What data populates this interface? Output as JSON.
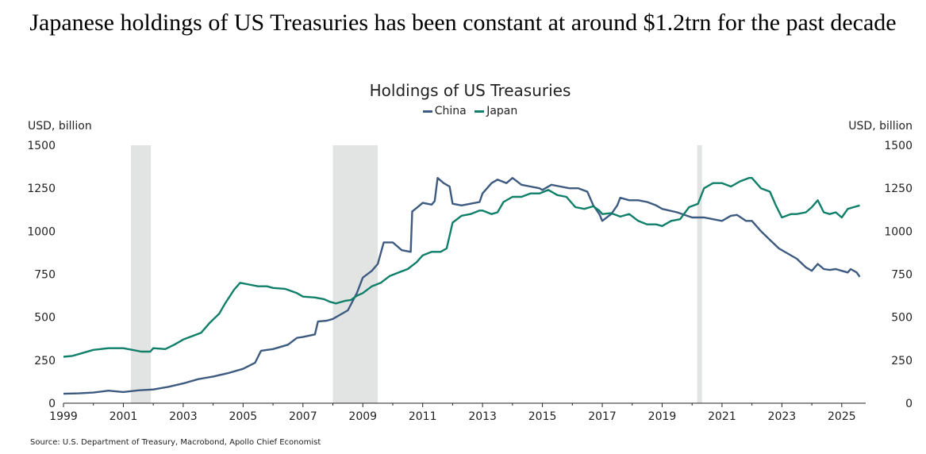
{
  "headline": "Japanese holdings of US Treasuries has been constant at around $1.2trn for the past decade",
  "source": "Source: U.S. Department of Treasury, Macrobond, Apollo Chief Economist",
  "chart_data": {
    "type": "line",
    "title": "Holdings of US Treasuries",
    "ylabel_left": "USD, billion",
    "ylabel_right": "USD, billion",
    "xlim": [
      1999,
      2025.8
    ],
    "ylim": [
      0,
      1500
    ],
    "y_ticks": [
      0,
      250,
      500,
      750,
      1000,
      1250,
      1500
    ],
    "x_ticks": [
      1999,
      2001,
      2003,
      2005,
      2007,
      2009,
      2011,
      2013,
      2015,
      2017,
      2019,
      2021,
      2023,
      2025
    ],
    "recessions": [
      [
        2001.25,
        2001.92
      ],
      [
        2008.0,
        2009.5
      ],
      [
        2020.17,
        2020.33
      ]
    ],
    "colors": {
      "China": "#3d5a80",
      "Japan": "#0f7f6a",
      "recession": "#e2e4e3",
      "axis": "#222222"
    },
    "series": [
      {
        "name": "China",
        "points": [
          [
            1999.0,
            55
          ],
          [
            1999.5,
            57
          ],
          [
            2000.0,
            62
          ],
          [
            2000.5,
            73
          ],
          [
            2001.0,
            65
          ],
          [
            2001.5,
            75
          ],
          [
            2002.0,
            80
          ],
          [
            2002.5,
            95
          ],
          [
            2003.0,
            115
          ],
          [
            2003.5,
            140
          ],
          [
            2004.0,
            155
          ],
          [
            2004.5,
            175
          ],
          [
            2005.0,
            200
          ],
          [
            2005.4,
            235
          ],
          [
            2005.6,
            305
          ],
          [
            2006.0,
            315
          ],
          [
            2006.5,
            340
          ],
          [
            2006.8,
            380
          ],
          [
            2007.0,
            385
          ],
          [
            2007.4,
            400
          ],
          [
            2007.5,
            475
          ],
          [
            2007.8,
            480
          ],
          [
            2008.0,
            490
          ],
          [
            2008.5,
            540
          ],
          [
            2008.8,
            640
          ],
          [
            2009.0,
            730
          ],
          [
            2009.3,
            770
          ],
          [
            2009.5,
            810
          ],
          [
            2009.7,
            935
          ],
          [
            2010.0,
            935
          ],
          [
            2010.3,
            890
          ],
          [
            2010.6,
            880
          ],
          [
            2010.65,
            1115
          ],
          [
            2010.9,
            1150
          ],
          [
            2011.0,
            1165
          ],
          [
            2011.3,
            1155
          ],
          [
            2011.4,
            1175
          ],
          [
            2011.5,
            1310
          ],
          [
            2011.7,
            1280
          ],
          [
            2011.9,
            1260
          ],
          [
            2012.0,
            1160
          ],
          [
            2012.3,
            1150
          ],
          [
            2012.6,
            1160
          ],
          [
            2012.9,
            1170
          ],
          [
            2013.0,
            1220
          ],
          [
            2013.3,
            1280
          ],
          [
            2013.5,
            1300
          ],
          [
            2013.8,
            1280
          ],
          [
            2014.0,
            1310
          ],
          [
            2014.3,
            1270
          ],
          [
            2014.6,
            1260
          ],
          [
            2014.9,
            1250
          ],
          [
            2015.0,
            1240
          ],
          [
            2015.3,
            1270
          ],
          [
            2015.6,
            1260
          ],
          [
            2015.9,
            1250
          ],
          [
            2016.2,
            1250
          ],
          [
            2016.5,
            1230
          ],
          [
            2016.7,
            1150
          ],
          [
            2016.9,
            1100
          ],
          [
            2017.0,
            1060
          ],
          [
            2017.3,
            1100
          ],
          [
            2017.5,
            1150
          ],
          [
            2017.6,
            1195
          ],
          [
            2017.9,
            1180
          ],
          [
            2018.2,
            1180
          ],
          [
            2018.5,
            1170
          ],
          [
            2018.8,
            1150
          ],
          [
            2019.0,
            1130
          ],
          [
            2019.5,
            1110
          ],
          [
            2020.0,
            1080
          ],
          [
            2020.4,
            1080
          ],
          [
            2020.7,
            1070
          ],
          [
            2021.0,
            1060
          ],
          [
            2021.3,
            1090
          ],
          [
            2021.5,
            1095
          ],
          [
            2021.8,
            1060
          ],
          [
            2022.0,
            1060
          ],
          [
            2022.3,
            1000
          ],
          [
            2022.6,
            950
          ],
          [
            2022.9,
            900
          ],
          [
            2023.2,
            870
          ],
          [
            2023.5,
            840
          ],
          [
            2023.8,
            790
          ],
          [
            2024.0,
            770
          ],
          [
            2024.2,
            810
          ],
          [
            2024.4,
            780
          ],
          [
            2024.6,
            775
          ],
          [
            2024.8,
            780
          ],
          [
            2025.0,
            770
          ],
          [
            2025.2,
            760
          ],
          [
            2025.3,
            780
          ],
          [
            2025.5,
            760
          ],
          [
            2025.6,
            735
          ]
        ]
      },
      {
        "name": "Japan",
        "points": [
          [
            1999.0,
            270
          ],
          [
            1999.3,
            275
          ],
          [
            1999.6,
            290
          ],
          [
            2000.0,
            310
          ],
          [
            2000.5,
            320
          ],
          [
            2001.0,
            320
          ],
          [
            2001.3,
            310
          ],
          [
            2001.6,
            300
          ],
          [
            2001.9,
            300
          ],
          [
            2002.0,
            320
          ],
          [
            2002.4,
            315
          ],
          [
            2002.7,
            340
          ],
          [
            2003.0,
            370
          ],
          [
            2003.3,
            390
          ],
          [
            2003.6,
            410
          ],
          [
            2003.9,
            470
          ],
          [
            2004.2,
            520
          ],
          [
            2004.4,
            580
          ],
          [
            2004.7,
            660
          ],
          [
            2004.9,
            700
          ],
          [
            2005.2,
            690
          ],
          [
            2005.5,
            680
          ],
          [
            2005.8,
            680
          ],
          [
            2006.0,
            670
          ],
          [
            2006.4,
            665
          ],
          [
            2006.8,
            640
          ],
          [
            2007.0,
            620
          ],
          [
            2007.4,
            615
          ],
          [
            2007.7,
            605
          ],
          [
            2007.9,
            590
          ],
          [
            2008.1,
            580
          ],
          [
            2008.4,
            595
          ],
          [
            2008.6,
            600
          ],
          [
            2008.8,
            625
          ],
          [
            2009.0,
            640
          ],
          [
            2009.3,
            680
          ],
          [
            2009.6,
            700
          ],
          [
            2009.9,
            740
          ],
          [
            2010.2,
            760
          ],
          [
            2010.5,
            780
          ],
          [
            2010.8,
            820
          ],
          [
            2011.0,
            860
          ],
          [
            2011.3,
            880
          ],
          [
            2011.6,
            880
          ],
          [
            2011.8,
            900
          ],
          [
            2012.0,
            1050
          ],
          [
            2012.3,
            1090
          ],
          [
            2012.6,
            1100
          ],
          [
            2012.9,
            1120
          ],
          [
            2013.0,
            1120
          ],
          [
            2013.3,
            1100
          ],
          [
            2013.5,
            1110
          ],
          [
            2013.7,
            1170
          ],
          [
            2014.0,
            1200
          ],
          [
            2014.3,
            1200
          ],
          [
            2014.6,
            1220
          ],
          [
            2014.9,
            1220
          ],
          [
            2015.2,
            1240
          ],
          [
            2015.5,
            1210
          ],
          [
            2015.8,
            1200
          ],
          [
            2016.1,
            1140
          ],
          [
            2016.4,
            1130
          ],
          [
            2016.7,
            1145
          ],
          [
            2016.9,
            1120
          ],
          [
            2017.0,
            1100
          ],
          [
            2017.3,
            1105
          ],
          [
            2017.6,
            1085
          ],
          [
            2017.9,
            1100
          ],
          [
            2018.2,
            1060
          ],
          [
            2018.5,
            1040
          ],
          [
            2018.8,
            1040
          ],
          [
            2019.0,
            1030
          ],
          [
            2019.3,
            1060
          ],
          [
            2019.6,
            1070
          ],
          [
            2019.9,
            1140
          ],
          [
            2020.2,
            1160
          ],
          [
            2020.4,
            1250
          ],
          [
            2020.7,
            1280
          ],
          [
            2021.0,
            1280
          ],
          [
            2021.3,
            1260
          ],
          [
            2021.6,
            1290
          ],
          [
            2021.9,
            1310
          ],
          [
            2022.0,
            1310
          ],
          [
            2022.3,
            1250
          ],
          [
            2022.6,
            1230
          ],
          [
            2022.8,
            1150
          ],
          [
            2023.0,
            1080
          ],
          [
            2023.3,
            1100
          ],
          [
            2023.5,
            1100
          ],
          [
            2023.8,
            1110
          ],
          [
            2024.0,
            1140
          ],
          [
            2024.2,
            1180
          ],
          [
            2024.4,
            1110
          ],
          [
            2024.6,
            1100
          ],
          [
            2024.8,
            1110
          ],
          [
            2025.0,
            1080
          ],
          [
            2025.2,
            1130
          ],
          [
            2025.4,
            1140
          ],
          [
            2025.6,
            1150
          ]
        ]
      }
    ]
  }
}
